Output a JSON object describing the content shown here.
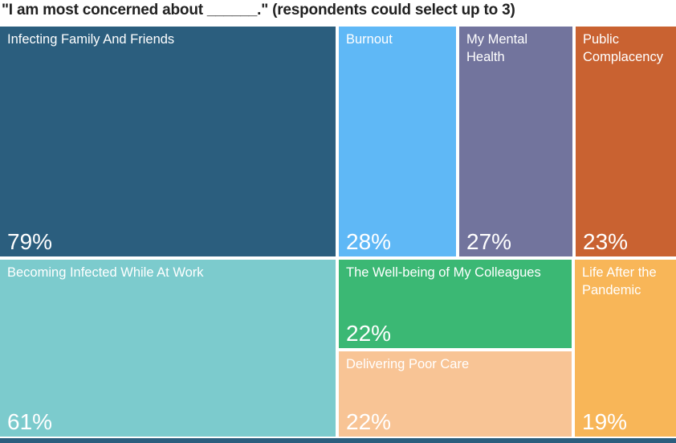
{
  "title": "\"I am most concerned about ______.\" (respondents could select up to 3)",
  "colors": {
    "background": "#ffffff",
    "title_text": "#212121",
    "tile_label_text": "#ffffff",
    "bottom_strip": "#2B5E7E"
  },
  "chart_data": {
    "type": "treemap",
    "title": "\"I am most concerned about ______.\" (respondents could select up to 3)",
    "unit": "%",
    "legend": "none",
    "layout": "two-row treemap; largest tiles on the left; white category label top-left and percentage bottom-left inside each tile; thin white gutters between tiles; dark navy strip along bottom edge",
    "items": [
      {
        "label": "Infecting Family And Friends",
        "value": 79,
        "value_label": "79%",
        "color": "#2B5E7E"
      },
      {
        "label": "Burnout",
        "value": 28,
        "value_label": "28%",
        "color": "#5FB8F6"
      },
      {
        "label": "My Mental Health",
        "value": 27,
        "value_label": "27%",
        "color": "#72749D"
      },
      {
        "label": "Public Complacency",
        "value": 23,
        "value_label": "23%",
        "color": "#C96231"
      },
      {
        "label": "Becoming Infected While At Work",
        "value": 61,
        "value_label": "61%",
        "color": "#7CCBCD"
      },
      {
        "label": "The Well-being of My Colleagues",
        "value": 22,
        "value_label": "22%",
        "color": "#3BB874"
      },
      {
        "label": "Delivering Poor Care",
        "value": 22,
        "value_label": "22%",
        "color": "#F8C495"
      },
      {
        "label": "Life After the Pandemic",
        "value": 19,
        "value_label": "19%",
        "color": "#F8B658"
      }
    ]
  }
}
